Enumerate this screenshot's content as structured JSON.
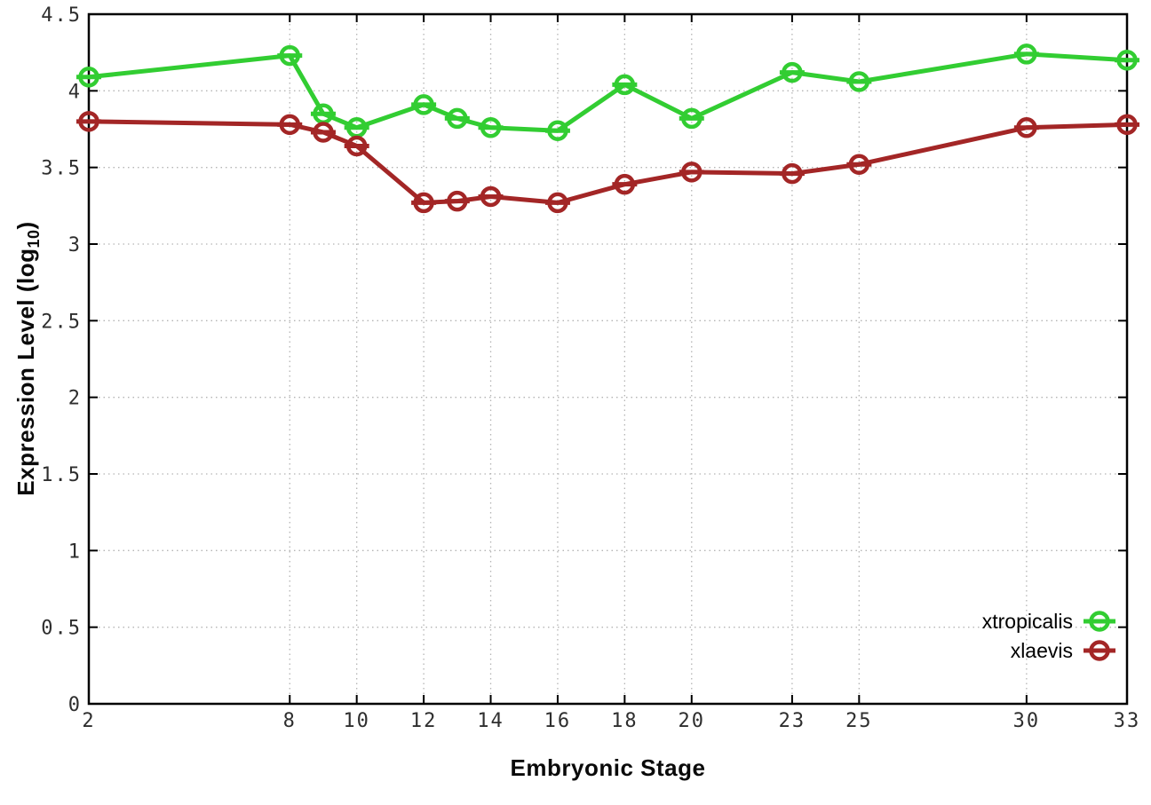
{
  "figure": {
    "background": "#ffffff",
    "border_color": "#000000",
    "grid_color": "#b4b4b4",
    "tick_label_color": "#2e2e2e"
  },
  "chart_data": {
    "type": "line",
    "title": "",
    "xlabel": "Embryonic Stage",
    "ylabel": "Expression Level (log10)",
    "ylabel_parts": {
      "prefix": "Expression Level (log",
      "sub": "10",
      "suffix": ")"
    },
    "xlim": [
      2,
      33
    ],
    "ylim": [
      0,
      4.5
    ],
    "grid": true,
    "legend_position": "inside-bottom-right",
    "x_ticks": [
      2,
      8,
      10,
      12,
      14,
      16,
      18,
      20,
      23,
      25,
      30,
      33
    ],
    "y_ticks": [
      0,
      0.5,
      1,
      1.5,
      2,
      2.5,
      3,
      3.5,
      4,
      4.5
    ],
    "x": [
      2,
      8,
      9,
      10,
      12,
      13,
      14,
      16,
      18,
      20,
      23,
      25,
      30,
      33
    ],
    "series": [
      {
        "name": "xtropicalis",
        "color": "#32cd32",
        "marker": "open-circle",
        "values": [
          4.09,
          4.23,
          3.85,
          3.76,
          3.91,
          3.82,
          3.76,
          3.74,
          4.04,
          3.82,
          4.12,
          4.06,
          4.24,
          4.2
        ]
      },
      {
        "name": "xlaevis",
        "color": "#a32626",
        "marker": "open-circle",
        "values": [
          3.8,
          3.78,
          3.73,
          3.64,
          3.27,
          3.28,
          3.31,
          3.27,
          3.39,
          3.47,
          3.46,
          3.52,
          3.76,
          3.78
        ]
      }
    ]
  }
}
